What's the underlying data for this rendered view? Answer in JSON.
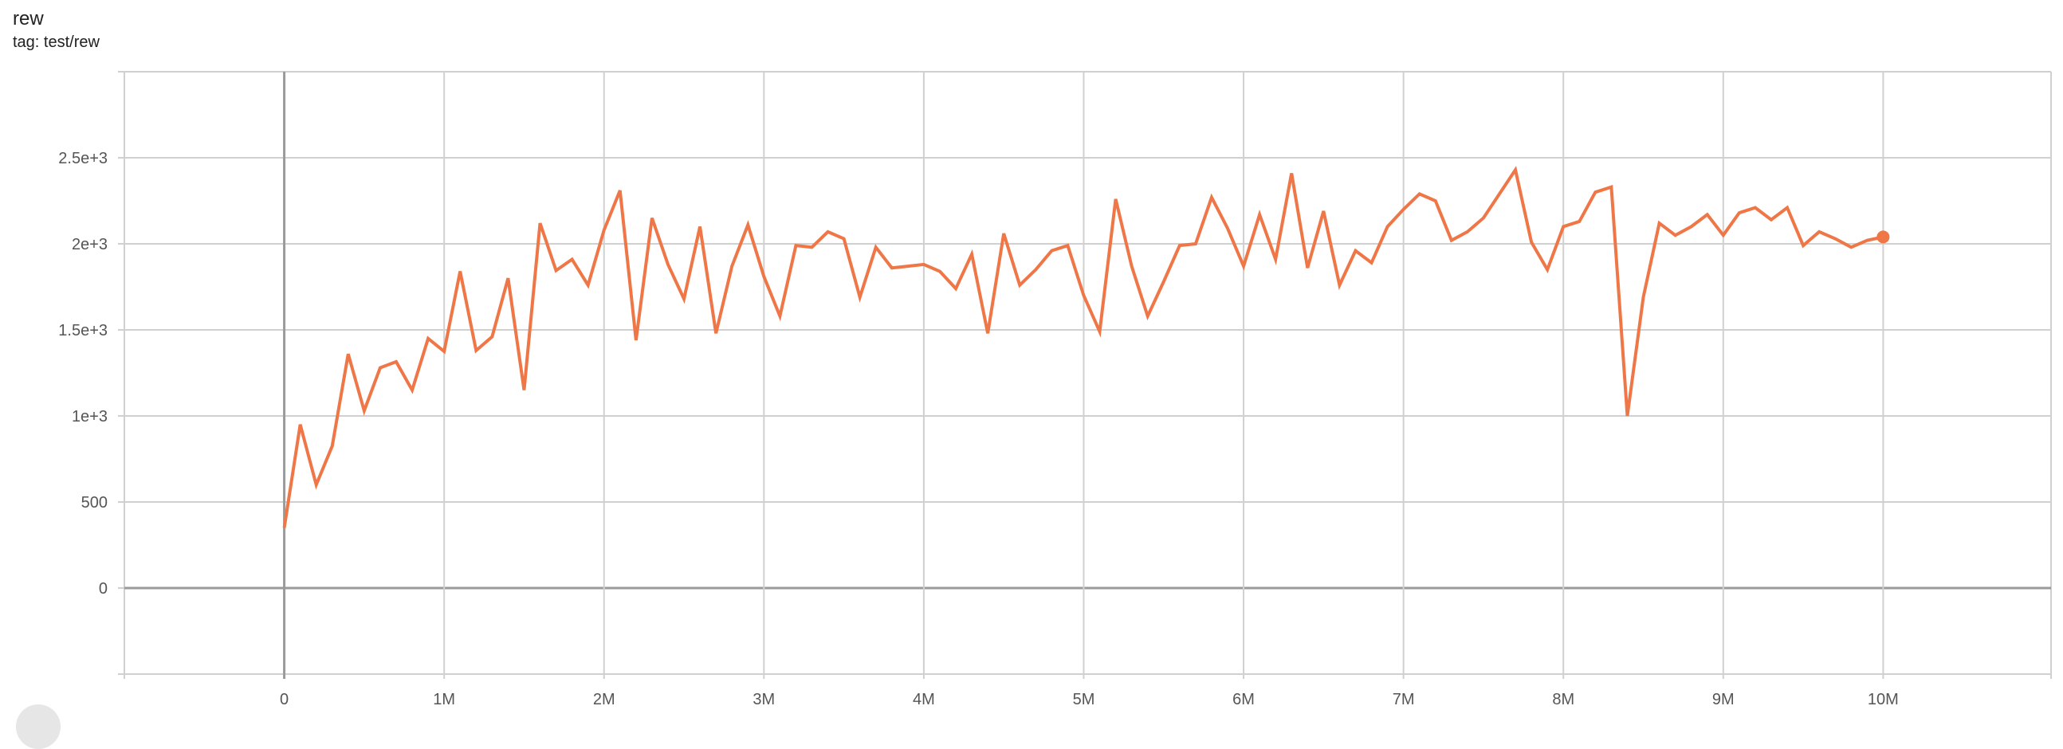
{
  "card": {
    "title": "rew",
    "subtitle": "tag: test/rew"
  },
  "chart_data": {
    "type": "line",
    "title": "rew",
    "subtitle": "tag: test/rew",
    "xlabel": "",
    "ylabel": "",
    "xlim": [
      -1000000,
      11050000
    ],
    "ylim": [
      -500,
      3000
    ],
    "grid": true,
    "x_ticks": [
      {
        "v": 0,
        "label": "0"
      },
      {
        "v": 1000000,
        "label": "1M"
      },
      {
        "v": 2000000,
        "label": "2M"
      },
      {
        "v": 3000000,
        "label": "3M"
      },
      {
        "v": 4000000,
        "label": "4M"
      },
      {
        "v": 5000000,
        "label": "5M"
      },
      {
        "v": 6000000,
        "label": "6M"
      },
      {
        "v": 7000000,
        "label": "7M"
      },
      {
        "v": 8000000,
        "label": "8M"
      },
      {
        "v": 9000000,
        "label": "9M"
      },
      {
        "v": 10000000,
        "label": "10M"
      }
    ],
    "y_ticks": [
      {
        "v": 0,
        "label": "0"
      },
      {
        "v": 500,
        "label": "500"
      },
      {
        "v": 1000,
        "label": "1e+3"
      },
      {
        "v": 1500,
        "label": "1.5e+3"
      },
      {
        "v": 2000,
        "label": "2e+3"
      },
      {
        "v": 2500,
        "label": "2.5e+3"
      }
    ],
    "color": "#ef7646",
    "series": [
      {
        "x_start": 0,
        "x_step": 100000,
        "values": [
          350,
          950,
          600,
          825,
          1360,
          1030,
          1280,
          1315,
          1150,
          1450,
          1375,
          1840,
          1380,
          1460,
          1800,
          1150,
          2120,
          1845,
          1910,
          1760,
          2080,
          2310,
          1440,
          2150,
          1880,
          1680,
          2100,
          1480,
          1870,
          2110,
          1810,
          1580,
          1990,
          1980,
          2070,
          2030,
          1690,
          1980,
          1860,
          1870,
          1880,
          1840,
          1740,
          1940,
          1480,
          2060,
          1760,
          1850,
          1960,
          1990,
          1700,
          1490,
          2260,
          1870,
          1580,
          1780,
          1990,
          2000,
          2270,
          2090,
          1870,
          2170,
          1910,
          2410,
          1860,
          2190,
          1760,
          1960,
          1890,
          2100,
          2200,
          2290,
          2250,
          2020,
          2070,
          2150,
          2290,
          2430,
          2010,
          1850,
          2100,
          2130,
          2300,
          2330,
          1000,
          1690,
          2120,
          2050,
          2100,
          2170,
          2050,
          2180,
          2210,
          2140,
          2210,
          1990,
          2070,
          2030,
          1980,
          2020,
          2040
        ]
      }
    ]
  }
}
